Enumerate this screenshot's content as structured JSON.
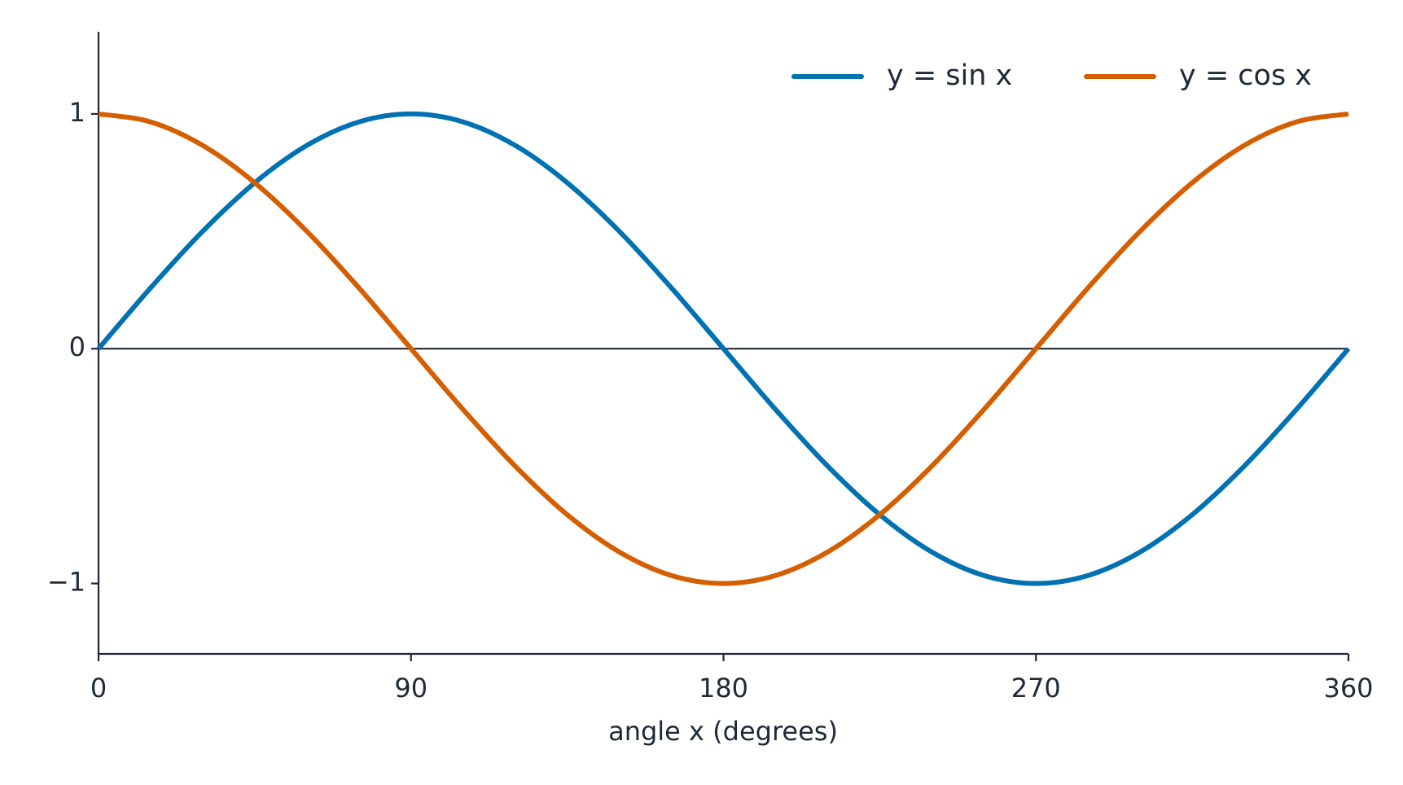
{
  "chart_data": {
    "type": "line",
    "xlabel": "angle x (degrees)",
    "x": [
      0,
      15,
      30,
      45,
      60,
      75,
      90,
      105,
      120,
      135,
      150,
      165,
      180,
      195,
      210,
      225,
      240,
      255,
      270,
      285,
      300,
      315,
      330,
      345,
      360
    ],
    "series": [
      {
        "name": "y = sin x",
        "color": "#0072b2",
        "values": [
          0,
          0.259,
          0.5,
          0.707,
          0.866,
          0.966,
          1,
          0.966,
          0.866,
          0.707,
          0.5,
          0.259,
          0,
          -0.259,
          -0.5,
          -0.707,
          -0.866,
          -0.966,
          -1,
          -0.966,
          -0.866,
          -0.707,
          -0.5,
          -0.259,
          0
        ]
      },
      {
        "name": "y = cos x",
        "color": "#d55e00",
        "values": [
          1,
          0.966,
          0.866,
          0.707,
          0.5,
          0.259,
          0,
          -0.259,
          -0.5,
          -0.707,
          -0.866,
          -0.966,
          -1,
          -0.966,
          -0.866,
          -0.707,
          -0.5,
          -0.259,
          0,
          0.259,
          0.5,
          0.707,
          0.866,
          0.966,
          1
        ]
      }
    ],
    "xlim": [
      0,
      360
    ],
    "xticks": [
      0,
      90,
      180,
      270,
      360
    ],
    "ylim": [
      -1.3,
      1.35
    ],
    "yticks": [
      {
        "value": -1,
        "label": "−1"
      },
      0,
      1
    ],
    "zero_line": true,
    "grid": false,
    "legend": "upper right"
  }
}
